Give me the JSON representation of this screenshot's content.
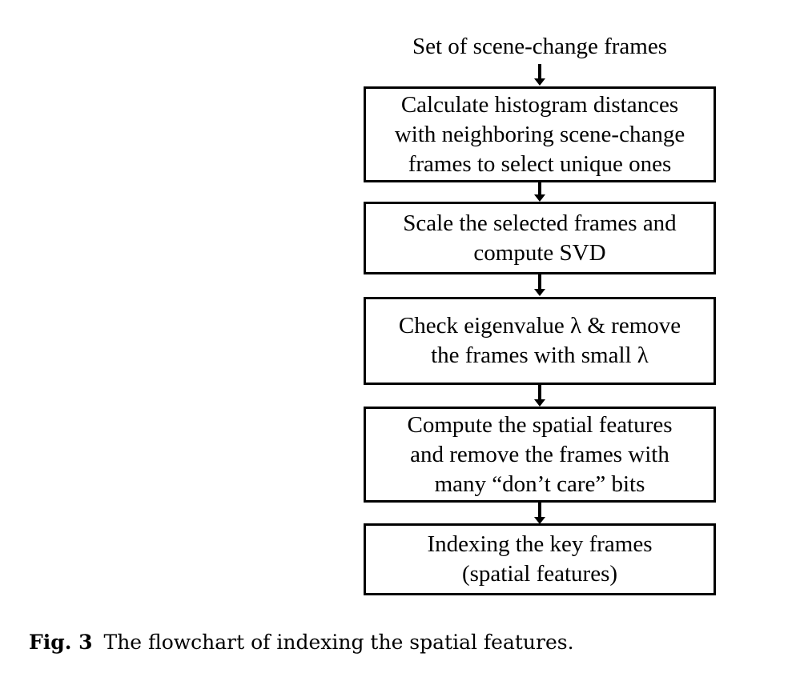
{
  "diagram": {
    "input_label": "Set of scene-change frames",
    "steps": [
      {
        "lines": [
          "Calculate histogram distances",
          "with neighboring scene-change",
          "frames to select unique ones"
        ]
      },
      {
        "lines": [
          "Scale the selected frames and",
          "compute SVD"
        ]
      },
      {
        "lines": [
          "Check eigenvalue λ & remove",
          "the frames with small λ"
        ]
      },
      {
        "lines": [
          "Compute the spatial features",
          "and remove the frames with",
          "many “don’t care” bits"
        ]
      },
      {
        "lines": [
          "Indexing the key frames",
          "(spatial features)"
        ]
      }
    ]
  },
  "caption": {
    "label": "Fig. 3",
    "text": "The flowchart of indexing the spatial features."
  }
}
